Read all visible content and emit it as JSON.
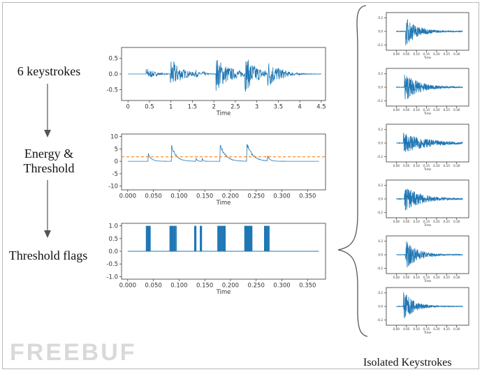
{
  "labels": {
    "keystrokes": "6 keystrokes",
    "energy_line1": "Energy &",
    "energy_line2": "Threshold",
    "flags": "Threshold flags",
    "isolated": "Isolated Keystrokes"
  },
  "watermark": "FREEBUF",
  "colors": {
    "signal": "#1f77b4",
    "threshold": "#ff7f0e",
    "axis": "#333333"
  },
  "chart_data": [
    {
      "type": "line",
      "xlabel": "Time",
      "xlim": [
        -0.15,
        4.6
      ],
      "ylim": [
        -0.85,
        0.85
      ],
      "xticks": [
        "0",
        "0.5",
        "1",
        "1.5",
        "2",
        "2.5",
        "3",
        "3.5",
        "4",
        "4.5"
      ],
      "xtick_values": [
        0,
        0.5,
        1,
        1.5,
        2,
        2.5,
        3,
        3.5,
        4,
        4.5
      ],
      "yticks": [
        "0.5",
        "0.0",
        "-0.5"
      ],
      "ytick_values": [
        0.5,
        0.0,
        -0.5
      ],
      "x_start": 0,
      "x_end": 4.5,
      "bursts": [
        {
          "t": 0.42,
          "amp": 0.22,
          "decay": 0.18
        },
        {
          "t": 0.98,
          "amp": 0.55,
          "decay": 0.25
        },
        {
          "t": 1.55,
          "amp": 0.15,
          "decay": 0.05
        },
        {
          "t": 1.72,
          "amp": 0.12,
          "decay": 0.05
        },
        {
          "t": 2.05,
          "amp": 0.55,
          "decay": 0.35
        },
        {
          "t": 2.72,
          "amp": 0.52,
          "decay": 0.3
        },
        {
          "t": 3.25,
          "amp": 0.4,
          "decay": 0.25
        },
        {
          "t": 3.55,
          "amp": 0.1,
          "decay": 0.05
        }
      ]
    },
    {
      "type": "line",
      "xlabel": "Time",
      "xlim": [
        -0.012,
        0.385
      ],
      "ylim": [
        -11.5,
        11
      ],
      "xticks": [
        "0.000",
        "0.050",
        "0.100",
        "0.150",
        "0.200",
        "0.250",
        "0.300",
        "0.350"
      ],
      "xtick_values": [
        0,
        0.05,
        0.1,
        0.15,
        0.2,
        0.25,
        0.3,
        0.35
      ],
      "yticks": [
        "10",
        "5",
        "0",
        "-5",
        "-10"
      ],
      "ytick_values": [
        10,
        5,
        0,
        -5,
        -10
      ],
      "x_start": 0,
      "x_end": 0.372,
      "threshold": 1.8,
      "peaks": [
        {
          "t": 0.04,
          "amp": 3.5,
          "decay": 0.006
        },
        {
          "t": 0.085,
          "amp": 7.5,
          "decay": 0.009
        },
        {
          "t": 0.133,
          "amp": 1.6,
          "decay": 0.002
        },
        {
          "t": 0.145,
          "amp": 1.3,
          "decay": 0.002
        },
        {
          "t": 0.18,
          "amp": 8.0,
          "decay": 0.01
        },
        {
          "t": 0.232,
          "amp": 8.0,
          "decay": 0.011
        },
        {
          "t": 0.272,
          "amp": 2.5,
          "decay": 0.004
        }
      ]
    },
    {
      "type": "line",
      "xlabel": "Time",
      "xlim": [
        -0.012,
        0.385
      ],
      "ylim": [
        -1.1,
        1.1
      ],
      "xticks": [
        "0.000",
        "0.050",
        "0.100",
        "0.150",
        "0.200",
        "0.250",
        "0.300",
        "0.350"
      ],
      "xtick_values": [
        0,
        0.05,
        0.1,
        0.15,
        0.2,
        0.25,
        0.3,
        0.35
      ],
      "yticks": [
        "1.0",
        "0.5",
        "0.0",
        "-0.5",
        "-1.0"
      ],
      "ytick_values": [
        1.0,
        0.5,
        0.0,
        -0.5,
        -1.0
      ],
      "x_start": 0,
      "x_end": 0.372,
      "flag_intervals": [
        [
          0.036,
          0.044
        ],
        [
          0.082,
          0.095
        ],
        [
          0.13,
          0.133
        ],
        [
          0.141,
          0.144
        ],
        [
          0.174,
          0.19
        ],
        [
          0.227,
          0.242
        ],
        [
          0.266,
          0.276
        ]
      ]
    },
    {
      "type": "line",
      "xlabel": "Time",
      "xlim": [
        -0.05,
        0.36
      ],
      "ylim": [
        -0.28,
        0.28
      ],
      "xticks": [
        "0.00",
        "0.05",
        "0.10",
        "0.15",
        "0.20",
        "0.25",
        "0.30"
      ],
      "xtick_values": [
        0,
        0.05,
        0.1,
        0.15,
        0.2,
        0.25,
        0.3
      ],
      "yticks": [
        "0.2",
        "0.0",
        "-0.2"
      ],
      "ytick_values": [
        0.2,
        0.0,
        -0.2
      ],
      "x_start": 0,
      "x_end": 0.33,
      "onset": 0.045,
      "amp": 0.22,
      "decay": 0.06
    },
    {
      "type": "line",
      "xlabel": "Time",
      "xlim": [
        -0.05,
        0.36
      ],
      "ylim": [
        -0.28,
        0.28
      ],
      "xticks": [
        "0.00",
        "0.05",
        "0.10",
        "0.15",
        "0.20",
        "0.25",
        "0.30"
      ],
      "xtick_values": [
        0,
        0.05,
        0.1,
        0.15,
        0.2,
        0.25,
        0.3
      ],
      "yticks": [
        "0.2",
        "0.0",
        "-0.2"
      ],
      "ytick_values": [
        0.2,
        0.0,
        -0.2
      ],
      "x_start": 0,
      "x_end": 0.33,
      "onset": 0.04,
      "amp": 0.22,
      "decay": 0.07
    },
    {
      "type": "line",
      "xlabel": "Time",
      "xlim": [
        -0.05,
        0.36
      ],
      "ylim": [
        -0.28,
        0.28
      ],
      "xticks": [
        "0.00",
        "0.05",
        "0.10",
        "0.15",
        "0.20",
        "0.25",
        "0.30"
      ],
      "xtick_values": [
        0,
        0.05,
        0.1,
        0.15,
        0.2,
        0.25,
        0.3
      ],
      "yticks": [
        "0.2",
        "0.0",
        "-0.2"
      ],
      "ytick_values": [
        0.2,
        0.0,
        -0.2
      ],
      "x_start": 0,
      "x_end": 0.33,
      "onset": 0.035,
      "amp": 0.15,
      "decay": 0.12
    },
    {
      "type": "line",
      "xlabel": "Time",
      "xlim": [
        -0.05,
        0.36
      ],
      "ylim": [
        -0.28,
        0.28
      ],
      "xticks": [
        "0.00",
        "0.05",
        "0.10",
        "0.15",
        "0.20",
        "0.25",
        "0.30"
      ],
      "xtick_values": [
        0,
        0.05,
        0.1,
        0.15,
        0.2,
        0.25,
        0.3
      ],
      "yticks": [
        "0.2",
        "0.0",
        "-0.2"
      ],
      "ytick_values": [
        0.2,
        0.0,
        -0.2
      ],
      "x_start": 0,
      "x_end": 0.33,
      "onset": 0.04,
      "amp": 0.2,
      "decay": 0.08
    },
    {
      "type": "line",
      "xlabel": "Time",
      "xlim": [
        -0.05,
        0.36
      ],
      "ylim": [
        -0.28,
        0.28
      ],
      "xticks": [
        "0.00",
        "0.05",
        "0.10",
        "0.15",
        "0.20",
        "0.25",
        "0.30"
      ],
      "xtick_values": [
        0,
        0.05,
        0.1,
        0.15,
        0.2,
        0.25,
        0.3
      ],
      "yticks": [
        "0.2",
        "0.0",
        "-0.2"
      ],
      "ytick_values": [
        0.2,
        0.0,
        -0.2
      ],
      "x_start": 0,
      "x_end": 0.33,
      "onset": 0.045,
      "amp": 0.22,
      "decay": 0.06
    },
    {
      "type": "line",
      "xlabel": "Time",
      "xlim": [
        -0.05,
        0.36
      ],
      "ylim": [
        -0.28,
        0.28
      ],
      "xticks": [
        "0.00",
        "0.05",
        "0.10",
        "0.15",
        "0.20",
        "0.25",
        "0.30"
      ],
      "xtick_values": [
        0,
        0.05,
        0.1,
        0.15,
        0.2,
        0.25,
        0.3
      ],
      "yticks": [
        "0.2",
        "0.0",
        "-0.2"
      ],
      "ytick_values": [
        0.2,
        0.0,
        -0.2
      ],
      "x_start": 0,
      "x_end": 0.33,
      "onset": 0.035,
      "amp": 0.24,
      "decay": 0.05
    }
  ]
}
